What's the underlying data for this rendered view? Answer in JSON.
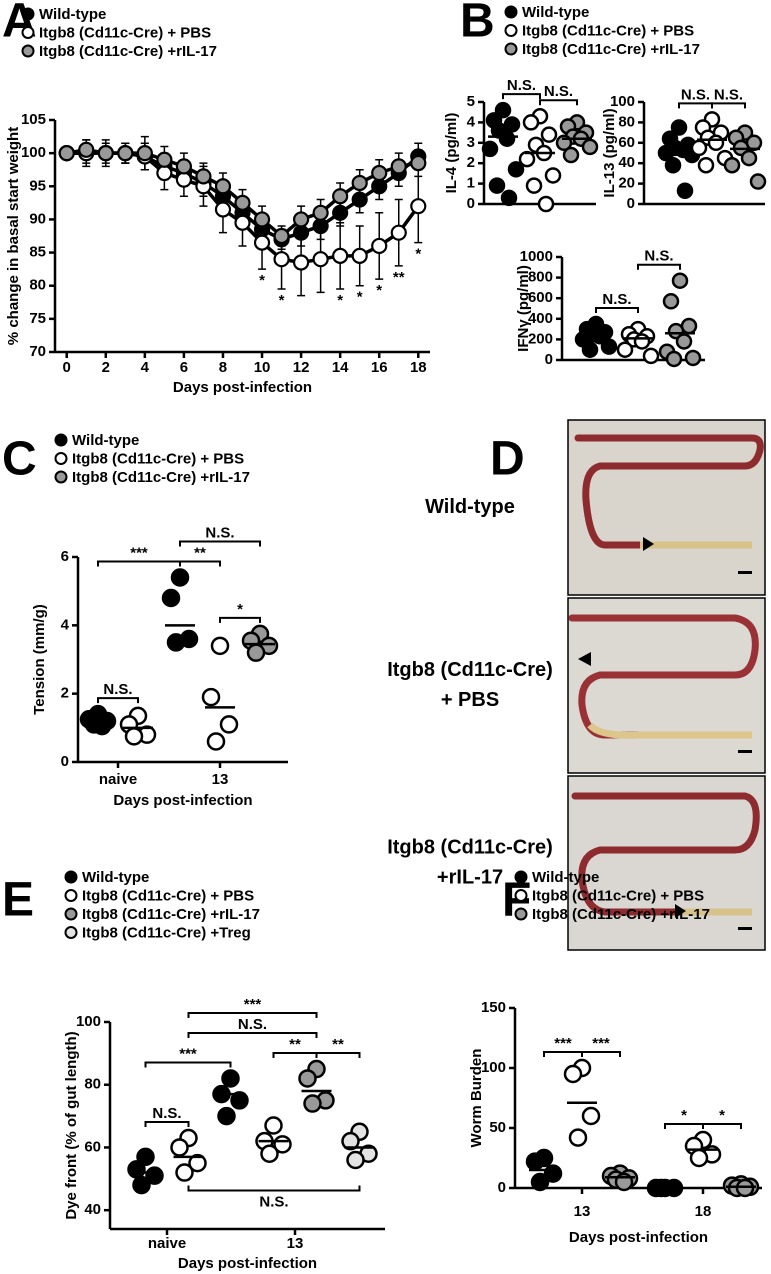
{
  "chart_data": [
    {
      "type": "line",
      "panel": "A",
      "x": [
        0,
        1,
        2,
        3,
        4,
        5,
        6,
        7,
        8,
        9,
        10,
        11,
        12,
        13,
        14,
        15,
        16,
        17,
        18
      ],
      "xlim": [
        -0.6,
        18.6
      ],
      "xticks": [
        0,
        2,
        4,
        6,
        8,
        10,
        12,
        14,
        16,
        18
      ],
      "ylim": [
        70,
        105
      ],
      "yticks": [
        70,
        75,
        80,
        85,
        90,
        95,
        100,
        105
      ],
      "ylabel": "% change in basal start weight",
      "xlabel": "Days post-infection",
      "series": [
        {
          "name": "Wild-type",
          "color": "#000000",
          "values": [
            100,
            100,
            100,
            100,
            99.5,
            98,
            97,
            95.5,
            93.5,
            91,
            88.5,
            87,
            88,
            89,
            91,
            93,
            95,
            97,
            99.5
          ],
          "errors": [
            0,
            1.5,
            1.5,
            1.5,
            2,
            2,
            2,
            2,
            2,
            2,
            2,
            1.5,
            2,
            2,
            2,
            2,
            2,
            2,
            2
          ]
        },
        {
          "name": "Itgb8 (Cd11c-Cre) + PBS",
          "color": "#ffffff",
          "values": [
            100,
            100,
            100,
            100,
            99.5,
            97,
            96,
            95,
            91.5,
            89.5,
            86.5,
            84,
            83.5,
            84,
            84.5,
            84.5,
            86,
            88,
            92
          ],
          "errors": [
            0,
            2,
            2,
            1.5,
            2,
            2.5,
            2.5,
            3,
            3.5,
            3.5,
            4,
            4.5,
            5,
            5,
            5,
            4.5,
            5,
            5,
            5.5
          ]
        },
        {
          "name": "Itgb8 (Cd11c-Cre) +rIL-17",
          "color": "#999999",
          "values": [
            100,
            100.5,
            100,
            100,
            100,
            99,
            98,
            96.5,
            95,
            92.5,
            90,
            87.5,
            90,
            91,
            93.5,
            95.5,
            97,
            98,
            98.5
          ],
          "errors": [
            0,
            1.5,
            1,
            1.5,
            2.5,
            2,
            2,
            2,
            2,
            2,
            2,
            1.5,
            2,
            2,
            2,
            2,
            2,
            2,
            2
          ]
        }
      ],
      "annotations": [
        {
          "x": 10,
          "label": "*"
        },
        {
          "x": 11,
          "label": "*"
        },
        {
          "x": 14,
          "label": "*"
        },
        {
          "x": 15,
          "label": "*"
        },
        {
          "x": 16,
          "label": "*"
        },
        {
          "x": 17,
          "label": "**"
        },
        {
          "x": 18,
          "label": "*"
        }
      ]
    },
    {
      "type": "dot",
      "panel": "B",
      "ylabel": "IL-4 (pg/ml)",
      "categories": [
        null
      ],
      "ylim": [
        0,
        5
      ],
      "yticks": [
        0,
        1,
        2,
        3,
        4,
        5
      ],
      "series": [
        {
          "name": "Wild-type",
          "color": "#000000",
          "values": [
            [
              4.6,
              4.1,
              3.9,
              3.6,
              3.2,
              2.7,
              1.7,
              0.9,
              0.3
            ]
          ],
          "means": [
            3.3
          ]
        },
        {
          "name": "Itgb8 (Cd11c-Cre) + PBS",
          "color": "#ffffff",
          "values": [
            [
              4.3,
              4.0,
              3.4,
              2.9,
              2.5,
              2.2,
              1.4,
              0.9,
              0
            ]
          ],
          "means": [
            2.5
          ]
        },
        {
          "name": "Itgb8 (Cd11c-Cre) +rIL-17",
          "color": "#999999",
          "values": [
            [
              4.0,
              3.8,
              3.5,
              3.3,
              3.2,
              3.0,
              2.8,
              2.4
            ]
          ],
          "means": [
            3.2
          ]
        }
      ],
      "brackets": [
        {
          "from": [
            0,
            0
          ],
          "to": [
            0,
            1
          ],
          "label": "N.S."
        },
        {
          "from": [
            0,
            1
          ],
          "to": [
            0,
            2
          ],
          "label": "N.S."
        }
      ]
    },
    {
      "type": "dot",
      "ylabel": "IL-13 (pg/ml)",
      "categories": [
        null
      ],
      "ylim": [
        0,
        100
      ],
      "yticks": [
        0,
        20,
        40,
        60,
        80,
        100
      ],
      "series": [
        {
          "color": "#000000",
          "values": [
            [
              75,
              64,
              58,
              55,
              53,
              50,
              48,
              38,
              13
            ]
          ],
          "means": [
            54
          ]
        },
        {
          "color": "#ffffff",
          "values": [
            [
              83,
              75,
              70,
              65,
              60,
              55,
              45,
              38
            ]
          ],
          "means": [
            63
          ]
        },
        {
          "color": "#999999",
          "values": [
            [
              70,
              65,
              60,
              55,
              45,
              38,
              22
            ]
          ],
          "means": [
            54
          ]
        }
      ],
      "brackets": [
        {
          "from": [
            0,
            0
          ],
          "to": [
            0,
            1
          ],
          "label": "N.S."
        },
        {
          "from": [
            0,
            1
          ],
          "to": [
            0,
            2
          ],
          "label": "N.S."
        }
      ]
    },
    {
      "type": "dot",
      "ylabel": "IFNγ (pg/ml)",
      "categories": [
        null
      ],
      "ylim": [
        0,
        1000
      ],
      "yticks": [
        0,
        200,
        400,
        600,
        800,
        1000
      ],
      "series": [
        {
          "color": "#000000",
          "values": [
            [
              350,
              300,
              270,
              250,
              230,
              200,
              130,
              100
            ]
          ],
          "means": [
            250
          ]
        },
        {
          "color": "#ffffff",
          "values": [
            [
              300,
              250,
              230,
              200,
              180,
              100,
              40
            ]
          ],
          "means": [
            210
          ]
        },
        {
          "color": "#999999",
          "values": [
            [
              770,
              570,
              330,
              280,
              180,
              80,
              20,
              10
            ]
          ],
          "means": [
            260
          ]
        }
      ],
      "brackets": [
        {
          "from": [
            0,
            0
          ],
          "to": [
            0,
            1
          ],
          "label": "N.S."
        },
        {
          "from": [
            0,
            1
          ],
          "to": [
            0,
            2
          ],
          "label": "N.S."
        }
      ]
    },
    {
      "type": "dot",
      "panel": "C",
      "ylabel": "Tension (mm/g)",
      "xlabel": "Days post-infection",
      "categories": [
        "naive",
        "13"
      ],
      "ylim": [
        0,
        6
      ],
      "yticks": [
        0,
        2,
        4,
        6
      ],
      "series": [
        {
          "name": "Wild-type",
          "color": "#000000",
          "values": [
            [
              1.4,
              1.25,
              1.2,
              1.1,
              1.05
            ],
            [
              5.4,
              4.8,
              3.6,
              3.5
            ]
          ],
          "means": [
            1.2,
            4.0
          ]
        },
        {
          "name": "Itgb8 (Cd11c-Cre) + PBS",
          "color": "#ffffff",
          "values": [
            [
              1.35,
              1.1,
              0.8,
              0.75
            ],
            [
              3.4,
              1.9,
              1.1,
              0.6
            ]
          ],
          "means": [
            1.0,
            1.6
          ]
        },
        {
          "name": "Itgb8 (Cd11c-Cre) +rIL-17",
          "color": "#999999",
          "values": [
            null,
            [
              3.75,
              3.55,
              3.4,
              3.2
            ]
          ],
          "means": [
            null,
            3.45
          ]
        }
      ],
      "brackets": [
        {
          "from": [
            0,
            0
          ],
          "to": [
            0,
            1
          ],
          "label": "N.S."
        },
        {
          "from": [
            1,
            0
          ],
          "to": [
            1,
            1
          ],
          "label": "**"
        },
        {
          "from": [
            1,
            1
          ],
          "to": [
            1,
            2
          ],
          "label": "*"
        },
        {
          "from": [
            0,
            0
          ],
          "to": [
            1,
            0
          ],
          "label": "***"
        },
        {
          "from": [
            1,
            0
          ],
          "to": [
            1,
            2
          ],
          "label": "N.S."
        }
      ]
    },
    {
      "type": "image",
      "panel": "D",
      "labels": [
        [
          "Wild-type"
        ],
        [
          "Itgb8 (Cd11c-Cre)",
          "+ PBS"
        ],
        [
          "Itgb8 (Cd11c-Cre)",
          "+rIL-17"
        ]
      ]
    },
    {
      "type": "dot",
      "panel": "E",
      "ylabel": "Dye front (% of gut length)",
      "xlabel": "Days post-infection",
      "categories": [
        "naive",
        "13"
      ],
      "ylim": [
        34,
        100
      ],
      "yticks": [
        40,
        60,
        80,
        100
      ],
      "series": [
        {
          "name": "Wild-type",
          "color": "#000000",
          "values": [
            [
              57,
              53,
              51,
              48
            ],
            [
              82,
              77,
              75,
              70
            ]
          ],
          "means": [
            52,
            77
          ]
        },
        {
          "name": "Itgb8 (Cd11c-Cre) + PBS",
          "color": "#ffffff",
          "values": [
            [
              63,
              60,
              55,
              52
            ],
            [
              67,
              62,
              61,
              58
            ]
          ],
          "means": [
            57,
            62
          ]
        },
        {
          "name": "Itgb8 (Cd11c-Cre) +rIL-17",
          "color": "#999999",
          "values": [
            null,
            [
              85,
              82,
              75,
              74
            ]
          ],
          "means": [
            null,
            78
          ]
        },
        {
          "name": "Itgb8 (Cd11c-Cre) +Treg",
          "color": "#e3e3e3",
          "values": [
            null,
            [
              65,
              62,
              58,
              56
            ]
          ],
          "means": [
            null,
            60
          ]
        }
      ],
      "brackets": [
        {
          "from": [
            0,
            0
          ],
          "to": [
            0,
            1
          ],
          "label": "N.S."
        },
        {
          "from": [
            0,
            0
          ],
          "to": [
            1,
            0
          ],
          "label": "***"
        },
        {
          "from": [
            1,
            1
          ],
          "to": [
            1,
            2
          ],
          "label": "**"
        },
        {
          "from": [
            1,
            2
          ],
          "to": [
            1,
            3
          ],
          "label": "**"
        },
        {
          "from": [
            0,
            1
          ],
          "to": [
            1,
            2
          ],
          "label": "N.S."
        },
        {
          "from": [
            0,
            1
          ],
          "to": [
            1,
            2
          ],
          "label": "***"
        },
        {
          "from": [
            0,
            1
          ],
          "to": [
            1,
            3
          ],
          "label": "N.S.",
          "side": "below"
        }
      ]
    },
    {
      "type": "dot",
      "panel": "F",
      "ylabel": "Worm Burden",
      "xlabel": "Days post-infection",
      "categories": [
        "13",
        "18"
      ],
      "ylim": [
        0,
        150
      ],
      "yticks": [
        0,
        50,
        100,
        150
      ],
      "series": [
        {
          "name": "Wild-type",
          "color": "#000000",
          "values": [
            [
              25,
              22,
              12,
              5
            ],
            [
              0,
              0,
              0,
              0
            ]
          ],
          "means": [
            15,
            0
          ]
        },
        {
          "name": "Itgb8 (Cd11c-Cre) + PBS",
          "color": "#ffffff",
          "values": [
            [
              100,
              95,
              60,
              42
            ],
            [
              40,
              35,
              28,
              25
            ]
          ],
          "means": [
            71,
            32
          ]
        },
        {
          "name": "Itgb8 (Cd11c-Cre) +rIL-17",
          "color": "#999999",
          "values": [
            [
              12,
              10,
              8,
              7,
              5
            ],
            [
              3,
              2,
              1,
              0,
              0
            ]
          ],
          "means": [
            9,
            1
          ]
        }
      ],
      "brackets": [
        {
          "from": [
            0,
            0
          ],
          "to": [
            0,
            1
          ],
          "label": "***"
        },
        {
          "from": [
            0,
            1
          ],
          "to": [
            0,
            2
          ],
          "label": "***"
        },
        {
          "from": [
            1,
            0
          ],
          "to": [
            1,
            1
          ],
          "label": "*"
        },
        {
          "from": [
            1,
            1
          ],
          "to": [
            1,
            2
          ],
          "label": "*"
        }
      ]
    }
  ]
}
